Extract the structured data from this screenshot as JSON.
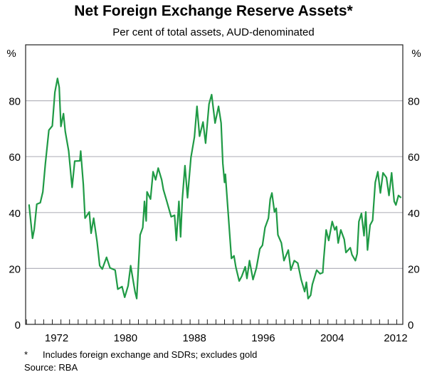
{
  "chart_data": {
    "type": "line",
    "title": "Net Foreign Exchange Reserve Assets*",
    "subtitle": "Per cent of total assets, AUD-denominated",
    "ylabel_left": "%",
    "ylabel_right": "%",
    "xlabel": "",
    "xlim": [
      1968.9,
      2012.7
    ],
    "ylim": [
      0,
      100
    ],
    "yticks": [
      0,
      20,
      40,
      60,
      80
    ],
    "xtick_labels": [
      "1972",
      "1980",
      "1988",
      "1996",
      "2004",
      "2012"
    ],
    "grid": true,
    "line_color": "#1f9a45",
    "series": [
      {
        "x": [
          1969.3,
          1969.7,
          1969.9,
          1970.2,
          1970.6,
          1970.9,
          1971.2,
          1971.6,
          1972.0,
          1972.3,
          1972.6,
          1972.8,
          1973.0,
          1973.3,
          1973.5,
          1973.9,
          1974.3,
          1974.6,
          1975.2,
          1975.3,
          1975.6,
          1975.8,
          1976.3,
          1976.5,
          1976.8,
          1977.2,
          1977.5,
          1977.8,
          1978.3,
          1978.7,
          1979.3,
          1979.6,
          1980.1,
          1980.4,
          1980.8,
          1981.1,
          1981.6,
          1981.8,
          1982.2,
          1982.5,
          1982.7,
          1982.9,
          1983.0,
          1983.4,
          1983.7,
          1984.0,
          1984.3,
          1984.7,
          1984.9,
          1985.3,
          1985.8,
          1986.2,
          1986.4,
          1986.7,
          1986.9,
          1987.1,
          1987.4,
          1987.7,
          1988.1,
          1988.5,
          1988.8,
          1989.1,
          1989.5,
          1989.8,
          1990.2,
          1990.5,
          1990.9,
          1991.3,
          1991.6,
          1991.8,
          1992.0,
          1992.1,
          1992.4,
          1992.8,
          1993.1,
          1993.3,
          1993.7,
          1994.0,
          1994.4,
          1994.6,
          1994.9,
          1995.3,
          1995.7,
          1996.1,
          1996.4,
          1996.7,
          1997.1,
          1997.3,
          1997.5,
          1997.8,
          1998.0,
          1998.2,
          1998.6,
          1998.9,
          1999.4,
          1999.7,
          2000.1,
          2000.5,
          2000.9,
          2001.3,
          2001.5,
          2001.7,
          2002.0,
          2002.2,
          2002.7,
          2003.1,
          2003.4,
          2003.5,
          2003.8,
          2004.1,
          2004.5,
          2004.8,
          2005.0,
          2005.2,
          2005.5,
          2005.9,
          2006.1,
          2006.6,
          2006.8,
          2007.2,
          2007.4,
          2007.6,
          2007.9,
          2008.2,
          2008.4,
          2008.6,
          2008.9,
          2009.2,
          2009.5,
          2009.8,
          2010.1,
          2010.4,
          2010.8,
          2011.1,
          2011.4,
          2011.7,
          2011.9,
          2012.2,
          2012.5
        ],
        "y": [
          42.9,
          30.8,
          34,
          43,
          43.5,
          47.4,
          57.6,
          69.5,
          71,
          83,
          88,
          84.8,
          70.8,
          75.4,
          69,
          62,
          49,
          58.4,
          58.5,
          62,
          50,
          38,
          40.2,
          32.6,
          38,
          29.6,
          21,
          19.8,
          24,
          20.2,
          19.4,
          12.6,
          13.5,
          9.7,
          13.8,
          21,
          11.7,
          9.2,
          32,
          34.6,
          44,
          37,
          47.4,
          44.8,
          54.6,
          51.7,
          55.9,
          51.7,
          48.2,
          44,
          38.5,
          39,
          30,
          44,
          31.3,
          44.8,
          56.8,
          45.3,
          59.7,
          67,
          78,
          67.3,
          72.4,
          64.8,
          78.8,
          82.2,
          72,
          78,
          72,
          57.6,
          50.8,
          53.7,
          40.6,
          23.6,
          24.5,
          20.6,
          15.5,
          17.2,
          20.6,
          16.4,
          22.8,
          16,
          20.2,
          27,
          28.3,
          34.6,
          38,
          44.8,
          47,
          40.2,
          41.5,
          32,
          29.1,
          22.8,
          26.6,
          19.4,
          22.8,
          21.9,
          16,
          11.7,
          15.1,
          9.2,
          10.4,
          14.3,
          19.4,
          18.1,
          18.5,
          22.8,
          33.8,
          30,
          36.8,
          33.8,
          35,
          29.1,
          33.8,
          30.4,
          25.7,
          27.4,
          24.9,
          22.8,
          25.3,
          36.8,
          39.7,
          31.7,
          40.2,
          26.6,
          35.5,
          37.2,
          50.8,
          54.6,
          47,
          54.2,
          52.5,
          46.1,
          54.2,
          44,
          42.7,
          46.1,
          45.3
        ]
      }
    ],
    "footnote_marker": "*",
    "footnote": "Includes foreign exchange and SDRs; excludes gold",
    "source": "Source: RBA"
  }
}
